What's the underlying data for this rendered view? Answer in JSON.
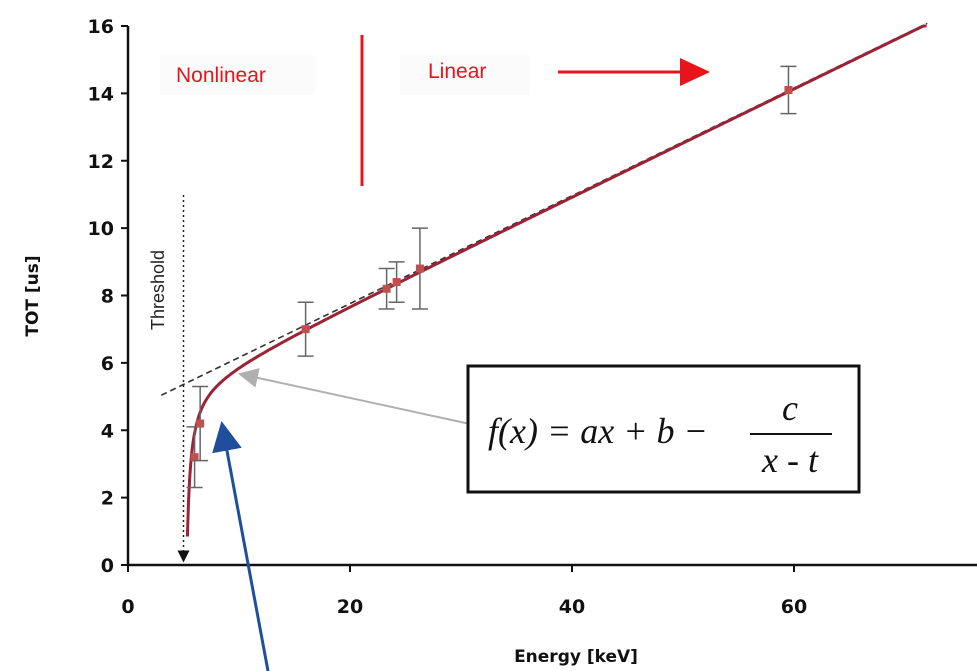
{
  "chart_data": {
    "type": "scatter",
    "xlabel": "Energy [keV]",
    "ylabel": "TOT [us]",
    "xlim": [
      0,
      75
    ],
    "ylim": [
      0,
      16
    ],
    "x_ticks": [
      "0",
      "20",
      "40",
      "60"
    ],
    "y_ticks": [
      "0",
      "2",
      "4",
      "6",
      "8",
      "10",
      "12",
      "14",
      "16"
    ],
    "grid": false,
    "series": [
      {
        "points": [
          {
            "x": 6.0,
            "y": 3.2,
            "err": 0.9
          },
          {
            "x": 6.5,
            "y": 4.2,
            "err": 1.1
          },
          {
            "x": 16.0,
            "y": 7.0,
            "err": 0.8
          },
          {
            "x": 23.3,
            "y": 8.2,
            "err": 0.6
          },
          {
            "x": 24.2,
            "y": 8.4,
            "err": 0.6
          },
          {
            "x": 26.3,
            "y": 8.8,
            "err": 1.2
          },
          {
            "x": 59.5,
            "y": 14.1,
            "err": 0.7
          }
        ],
        "color": "#c0504d"
      }
    ],
    "fit_curve": {
      "a": 0.16,
      "b": 4.56,
      "c": 1.6,
      "t": 5.0,
      "color": "#9b2335"
    },
    "linear_asymptote": {
      "slope": 0.16,
      "intercept": 4.56,
      "style": "dashed",
      "color": "#333333"
    },
    "threshold_x": 5.0,
    "annotations": {
      "nonlinear": "Nonlinear",
      "linear": "Linear",
      "threshold": "Threshold",
      "formula": {
        "lhs": "f(x) = ax + b −",
        "numerator": "c",
        "denominator": "x - t"
      }
    },
    "colors": {
      "region_labels": "#e8141a",
      "pointer_arrow": "#1f4e9c",
      "formula_arrow": "#b0b0b0"
    }
  }
}
